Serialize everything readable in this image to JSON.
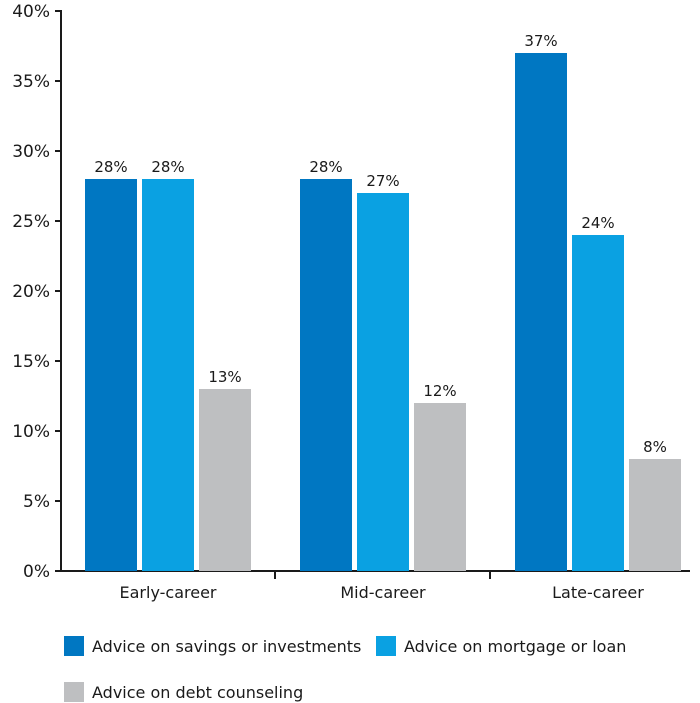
{
  "chart_data": {
    "type": "bar",
    "title": "",
    "xlabel": "",
    "ylabel": "",
    "categories": [
      "Early-career",
      "Mid-career",
      "Late-career"
    ],
    "series": [
      {
        "name": "Advice on savings or investments",
        "values": [
          28,
          28,
          37
        ],
        "color": "#0077c2"
      },
      {
        "name": "Advice on mortgage or loan",
        "values": [
          28,
          27,
          24
        ],
        "color": "#0aa1e2"
      },
      {
        "name": "Advice on debt counseling",
        "values": [
          13,
          12,
          8
        ],
        "color": "#bebfc1"
      }
    ],
    "ylim": [
      0,
      40
    ],
    "y_ticks": [
      "0%",
      "5%",
      "10%",
      "15%",
      "20%",
      "25%",
      "30%",
      "35%",
      "40%"
    ],
    "value_suffix": "%",
    "grid": false,
    "legend_position": "bottom"
  }
}
